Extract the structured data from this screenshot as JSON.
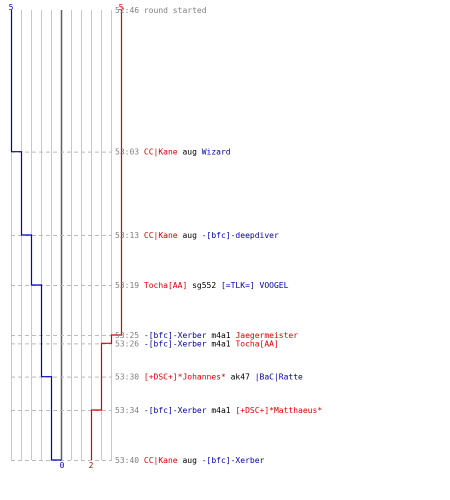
{
  "chart_data": {
    "type": "line",
    "teams": [
      {
        "name": "blue",
        "color": "#0000cc",
        "start_label": "5",
        "end_label": "0"
      },
      {
        "name": "red",
        "color": "#dd0000",
        "start_label": "5",
        "end_label": "2"
      }
    ],
    "ylim": [
      0,
      5
    ],
    "time_axis": [
      "52:46",
      "53:40"
    ],
    "events": [
      {
        "time": "52:46",
        "parts": [
          {
            "text": "round started",
            "color": "#808080"
          }
        ],
        "blue": 5,
        "red": 5
      },
      {
        "time": "53:03",
        "parts": [
          {
            "text": "CC|Kane",
            "color": "#dd0000"
          },
          {
            "text": " aug ",
            "color": "#000000"
          },
          {
            "text": "Wizard",
            "color": "#0000aa"
          }
        ],
        "blue": 4,
        "red": 5
      },
      {
        "time": "53:13",
        "parts": [
          {
            "text": "CC|Kane",
            "color": "#dd0000"
          },
          {
            "text": " aug ",
            "color": "#000000"
          },
          {
            "text": "-[bfc]-deepdiver",
            "color": "#0000aa"
          }
        ],
        "blue": 3,
        "red": 5
      },
      {
        "time": "53:19",
        "parts": [
          {
            "text": "Tocha[AA]",
            "color": "#dd0000"
          },
          {
            "text": " sg552 ",
            "color": "#000000"
          },
          {
            "text": "[=TLK=] VOOGEL",
            "color": "#0000aa"
          }
        ],
        "blue": 2,
        "red": 5
      },
      {
        "time": "53:25",
        "parts": [
          {
            "text": "-[bfc]-Xerber",
            "color": "#0000aa"
          },
          {
            "text": " m4a1 ",
            "color": "#000000"
          },
          {
            "text": "Jaegermeister",
            "color": "#dd0000"
          }
        ],
        "blue": 2,
        "red": 4
      },
      {
        "time": "53:26",
        "parts": [
          {
            "text": "-[bfc]-Xerber",
            "color": "#0000aa"
          },
          {
            "text": " m4a1 ",
            "color": "#000000"
          },
          {
            "text": "Tocha[AA]",
            "color": "#dd0000"
          }
        ],
        "blue": 2,
        "red": 3
      },
      {
        "time": "53:30",
        "parts": [
          {
            "text": "[+DSC+]*Johannes*",
            "color": "#dd0000"
          },
          {
            "text": " ak47 ",
            "color": "#000000"
          },
          {
            "text": "|BaC|Ratte",
            "color": "#0000aa"
          }
        ],
        "blue": 1,
        "red": 3
      },
      {
        "time": "53:34",
        "parts": [
          {
            "text": "-[bfc]-Xerber",
            "color": "#0000aa"
          },
          {
            "text": " m4a1 ",
            "color": "#000000"
          },
          {
            "text": "[+DSC+]*Matthaeus*",
            "color": "#dd0000"
          }
        ],
        "blue": 1,
        "red": 2
      },
      {
        "time": "53:40",
        "parts": [
          {
            "text": "CC|Kane",
            "color": "#dd0000"
          },
          {
            "text": " aug ",
            "color": "#000000"
          },
          {
            "text": "-[bfc]-Xerber",
            "color": "#0000aa"
          }
        ],
        "blue": 0,
        "red": 2
      }
    ],
    "grid": true,
    "colors": {
      "grid": "#c8c8c8",
      "dash": "#bbbbbb",
      "center": "#606060",
      "time": "#808080"
    }
  }
}
